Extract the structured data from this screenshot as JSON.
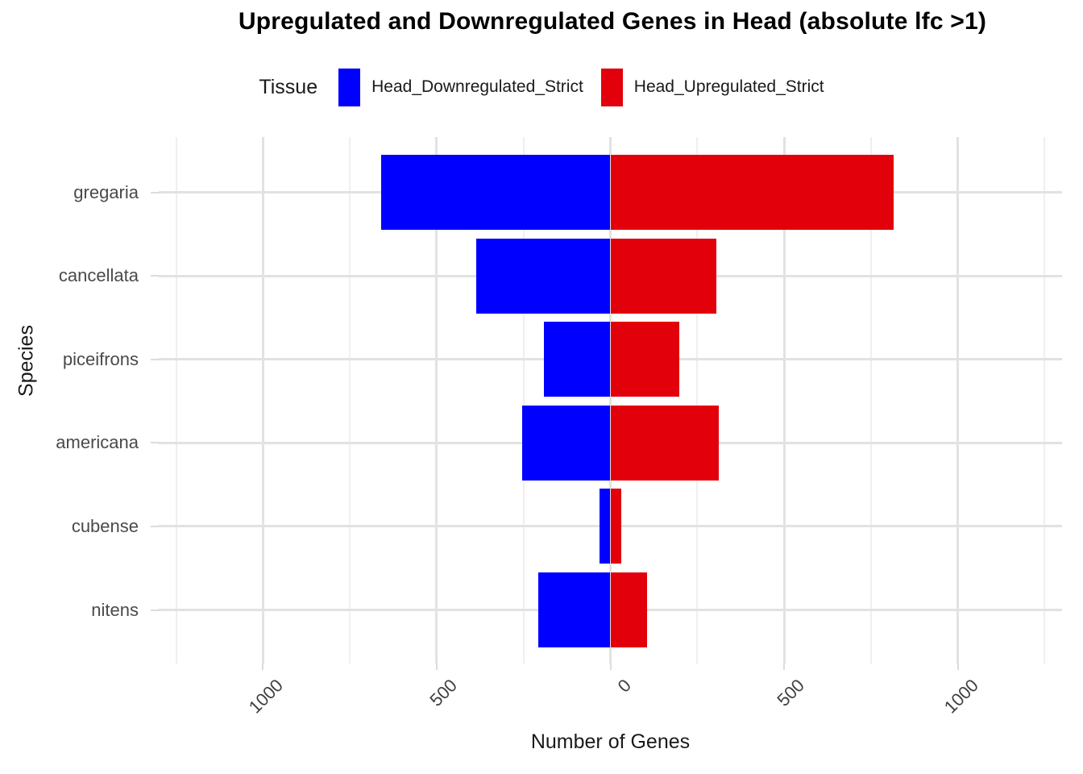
{
  "title": "Upregulated and Downregulated Genes in Head (absolute lfc >1)",
  "legend": {
    "title": "Tissue",
    "items": [
      {
        "label": "Head_Downregulated_Strict",
        "color": "#0000FF"
      },
      {
        "label": "Head_Upregulated_Strict",
        "color": "#E2000B"
      }
    ]
  },
  "chart_data": {
    "type": "bar",
    "variant": "diverging-horizontal",
    "title": "Upregulated and Downregulated Genes in Head (absolute lfc >1)",
    "xlabel": "Number of Genes",
    "ylabel": "Species",
    "categories": [
      "gregaria",
      "cancellata",
      "piceifrons",
      "americana",
      "cubense",
      "nitens"
    ],
    "series": [
      {
        "name": "Head_Downregulated_Strict",
        "color": "#0000FF",
        "direction": "negative",
        "values": [
          660,
          386,
          191,
          255,
          32,
          208
        ]
      },
      {
        "name": "Head_Upregulated_Strict",
        "color": "#E2000B",
        "direction": "positive",
        "values": [
          815,
          305,
          198,
          312,
          31,
          106
        ]
      }
    ],
    "x_ticks": [
      {
        "value": -1000,
        "label": "1000"
      },
      {
        "value": -500,
        "label": "500"
      },
      {
        "value": 0,
        "label": "0"
      },
      {
        "value": 500,
        "label": "500"
      },
      {
        "value": 1000,
        "label": "1000"
      }
    ],
    "x_minor_gridlines": [
      -1250,
      -750,
      -250,
      250,
      750,
      1250
    ],
    "xlim": [
      -1300,
      1300
    ],
    "grid": true,
    "legend_position": "top"
  },
  "colors": {
    "background": "#FFFFFF",
    "grid_major": "#E2E2E2",
    "grid_minor": "#EFEFEF",
    "tick": "#DCDCDC",
    "axis_text": "#4A4A4A",
    "title_text": "#000000"
  }
}
